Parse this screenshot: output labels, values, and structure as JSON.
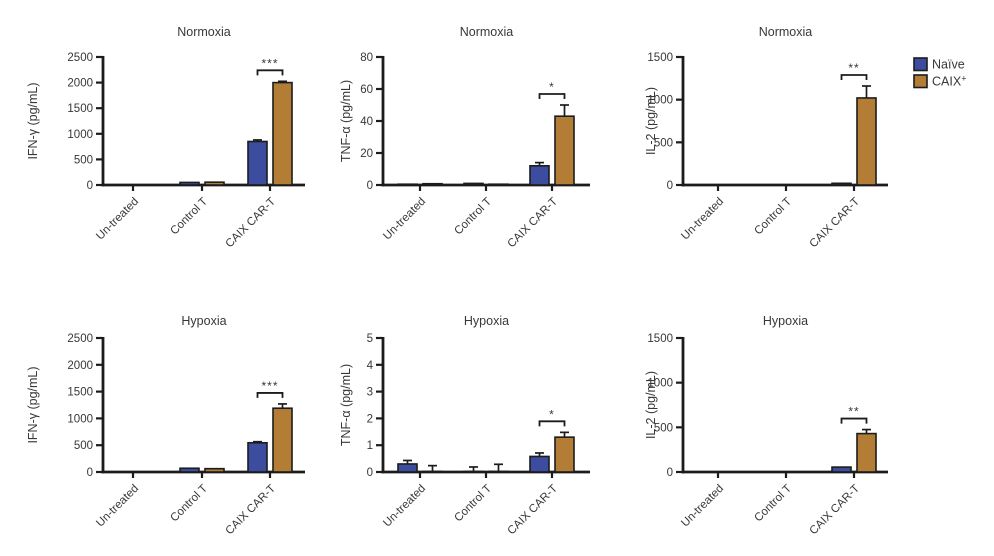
{
  "figure": {
    "description": "Cytokine release bar charts under normoxia and hypoxia",
    "background": "#ffffff"
  },
  "colors": {
    "naive": "#3c4c9e",
    "caix": "#b37d35",
    "axis": "#1c1c1c",
    "text": "#383838",
    "bar_border": "#1c1c1c",
    "error_bar": "#1c1c1c",
    "background": "#ffffff"
  },
  "legend": {
    "position": "top-right",
    "items": [
      {
        "label": "Naïve",
        "sup": "",
        "color_key": "naive"
      },
      {
        "label": "CAIX",
        "sup": "+",
        "color_key": "caix"
      }
    ]
  },
  "chart_data": [
    {
      "type": "bar",
      "title": "Normoxia",
      "ylabel": "IFN-γ (pg/mL)",
      "categories": [
        "Un-treated",
        "Control T",
        "CAIX CAR-T"
      ],
      "series": [
        {
          "name": "Naïve",
          "color_key": "naive",
          "values": [
            0,
            50,
            850
          ],
          "errors": [
            0,
            0,
            30
          ]
        },
        {
          "name": "CAIX+",
          "color_key": "caix",
          "values": [
            0,
            55,
            2000
          ],
          "errors": [
            0,
            0,
            25
          ]
        }
      ],
      "ylim": [
        0,
        2500
      ],
      "yticks": [
        0,
        500,
        1000,
        1500,
        2000,
        2500
      ],
      "grid": false,
      "significance": {
        "category": "CAIX CAR-T",
        "label": "***"
      }
    },
    {
      "type": "bar",
      "title": "Normoxia",
      "ylabel": "TNF-α (pg/mL)",
      "categories": [
        "Un-treated",
        "Control T",
        "CAIX CAR-T"
      ],
      "series": [
        {
          "name": "Naïve",
          "color_key": "naive",
          "values": [
            0.5,
            1.0,
            12
          ],
          "errors": [
            0,
            0,
            2
          ]
        },
        {
          "name": "CAIX+",
          "color_key": "caix",
          "values": [
            0.8,
            0.5,
            43
          ],
          "errors": [
            0,
            0,
            7
          ]
        }
      ],
      "ylim": [
        0,
        80
      ],
      "yticks": [
        0,
        20,
        40,
        60,
        80
      ],
      "grid": false,
      "significance": {
        "category": "CAIX CAR-T",
        "label": "*"
      }
    },
    {
      "type": "bar",
      "title": "Normoxia",
      "ylabel": "IL-2 (pg/mL)",
      "categories": [
        "Un-treated",
        "Control T",
        "CAIX CAR-T"
      ],
      "series": [
        {
          "name": "Naïve",
          "color_key": "naive",
          "values": [
            0,
            0,
            20
          ],
          "errors": [
            0,
            0,
            0
          ]
        },
        {
          "name": "CAIX+",
          "color_key": "caix",
          "values": [
            0,
            0,
            1020
          ],
          "errors": [
            0,
            0,
            140
          ]
        }
      ],
      "ylim": [
        0,
        1500
      ],
      "yticks": [
        0,
        500,
        1000,
        1500
      ],
      "grid": false,
      "significance": {
        "category": "CAIX CAR-T",
        "label": "**"
      }
    },
    {
      "type": "bar",
      "title": "Hypoxia",
      "ylabel": "IFN-γ (pg/mL)",
      "categories": [
        "Un-treated",
        "Control T",
        "CAIX CAR-T"
      ],
      "series": [
        {
          "name": "Naïve",
          "color_key": "naive",
          "values": [
            0,
            70,
            545
          ],
          "errors": [
            0,
            0,
            20
          ]
        },
        {
          "name": "CAIX+",
          "color_key": "caix",
          "values": [
            0,
            62,
            1190
          ],
          "errors": [
            0,
            0,
            80
          ]
        }
      ],
      "ylim": [
        0,
        2500
      ],
      "yticks": [
        0,
        500,
        1000,
        1500,
        2000,
        2500
      ],
      "grid": false,
      "significance": {
        "category": "CAIX CAR-T",
        "label": "***"
      }
    },
    {
      "type": "bar",
      "title": "Hypoxia",
      "ylabel": "TNF-α (pg/mL)",
      "categories": [
        "Un-treated",
        "Control T",
        "CAIX CAR-T"
      ],
      "series": [
        {
          "name": "Naïve",
          "color_key": "naive",
          "values": [
            0.3,
            0.02,
            0.58
          ],
          "errors": [
            0.13,
            0.15,
            0.13
          ]
        },
        {
          "name": "CAIX+",
          "color_key": "caix",
          "values": [
            0.02,
            0.02,
            1.3
          ],
          "errors": [
            0.2,
            0.25,
            0.18
          ]
        }
      ],
      "ylim": [
        0,
        5
      ],
      "yticks": [
        0,
        1,
        2,
        3,
        4,
        5
      ],
      "grid": false,
      "significance": {
        "category": "CAIX CAR-T",
        "label": "*"
      }
    },
    {
      "type": "bar",
      "title": "Hypoxia",
      "ylabel": "IL-2 (pg/mL)",
      "categories": [
        "Un-treated",
        "Control T",
        "CAIX CAR-T"
      ],
      "series": [
        {
          "name": "Naïve",
          "color_key": "naive",
          "values": [
            0,
            0,
            55
          ],
          "errors": [
            0,
            0,
            0
          ]
        },
        {
          "name": "CAIX+",
          "color_key": "caix",
          "values": [
            0,
            0,
            430
          ],
          "errors": [
            0,
            0,
            45
          ]
        }
      ],
      "ylim": [
        0,
        1500
      ],
      "yticks": [
        0,
        500,
        1000,
        1500
      ],
      "grid": false,
      "significance": {
        "category": "CAIX CAR-T",
        "label": "**"
      }
    }
  ]
}
